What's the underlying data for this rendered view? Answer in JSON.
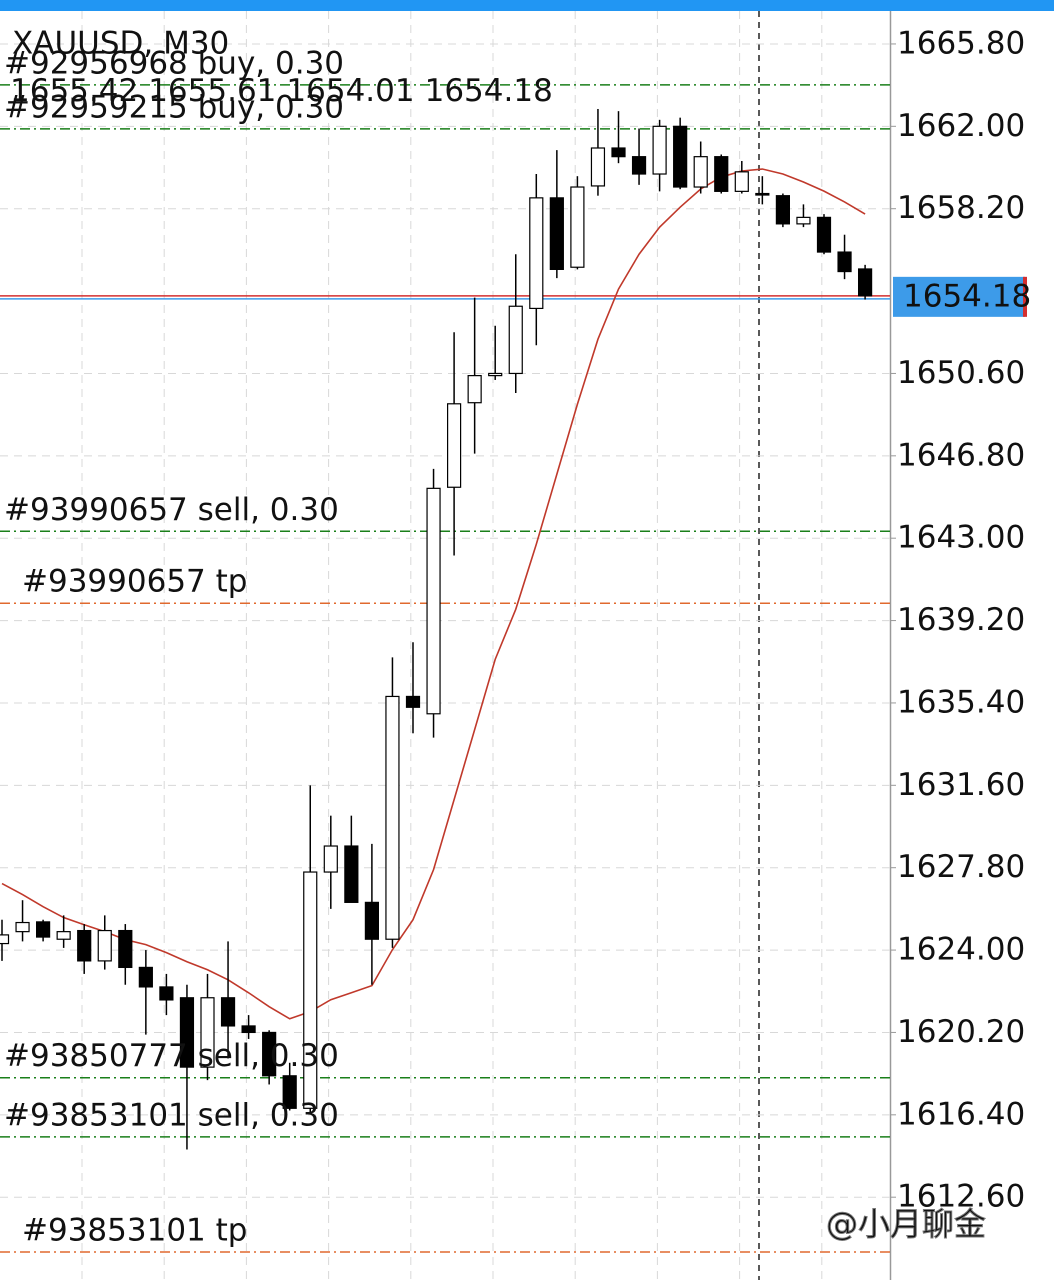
{
  "chart_data": {
    "type": "candlestick",
    "title": "XAUUSD, M30",
    "ylim": [
      1608.78,
      1667.32
    ],
    "yticks": [
      {
        "value": 1665.8,
        "label": "1665.80"
      },
      {
        "value": 1662,
        "label": "1662.00"
      },
      {
        "value": 1658.2,
        "label": "1658.20"
      },
      {
        "value": 1650.6,
        "label": "1650.60"
      },
      {
        "value": 1646.8,
        "label": "1646.80"
      },
      {
        "value": 1643,
        "label": "1643.00"
      },
      {
        "value": 1639.2,
        "label": "1639.20"
      },
      {
        "value": 1635.4,
        "label": "1635.40"
      },
      {
        "value": 1631.6,
        "label": "1631.60"
      },
      {
        "value": 1627.8,
        "label": "1627.80"
      },
      {
        "value": 1624,
        "label": "1624.00"
      },
      {
        "value": 1620.2,
        "label": "1620.20"
      },
      {
        "value": 1616.4,
        "label": "1616.40"
      },
      {
        "value": 1612.6,
        "label": "1612.60"
      }
    ],
    "grid": true,
    "up_color": "#ffffff",
    "down_color": "#000000",
    "series": {
      "open": [
        1624.3,
        1624.85,
        1625.3,
        1624.5,
        1624.9,
        1623.5,
        1624.9,
        1623.2,
        1622.3,
        1621.8,
        1618.6,
        1621.8,
        1620.5,
        1620.2,
        1618.2,
        1616.7,
        1627.6,
        1628.8,
        1626.2,
        1624.5,
        1635.7,
        1634.9,
        1645.35,
        1649.25,
        1650.5,
        1650.6,
        1653.6,
        1658.7,
        1655.5,
        1659.25,
        1661.0,
        1660.6,
        1659.8,
        1662.0,
        1659.2,
        1660.6,
        1659.0,
        1658.9,
        1658.8,
        1657.5,
        1657.8,
        1656.2,
        1655.42
      ],
      "high": [
        1625.4,
        1626.3,
        1625.4,
        1625.6,
        1625.2,
        1625.6,
        1625.2,
        1624.0,
        1622.9,
        1622.4,
        1622.9,
        1624.4,
        1621.0,
        1620.3,
        1618.8,
        1631.6,
        1630.2,
        1630.2,
        1628.9,
        1637.5,
        1638.2,
        1646.2,
        1652.5,
        1654.1,
        1652.8,
        1656.1,
        1659.8,
        1660.9,
        1659.7,
        1662.8,
        1662.7,
        1661.9,
        1662.3,
        1662.4,
        1661.3,
        1660.7,
        1660.4,
        1659.7,
        1658.9,
        1658.4,
        1657.95,
        1657.0,
        1655.61
      ],
      "low": [
        1623.5,
        1624.4,
        1624.4,
        1624.1,
        1622.9,
        1623.1,
        1622.4,
        1620.1,
        1621.0,
        1614.8,
        1618.0,
        1619.0,
        1619.9,
        1617.8,
        1616.6,
        1616.5,
        1625.9,
        1626.2,
        1622.4,
        1624.1,
        1634.0,
        1633.8,
        1642.2,
        1646.9,
        1650.3,
        1649.7,
        1651.9,
        1655.0,
        1655.4,
        1658.8,
        1660.3,
        1659.3,
        1659.0,
        1659.1,
        1658.9,
        1658.9,
        1658.9,
        1658.4,
        1657.35,
        1657.35,
        1656.1,
        1654.95,
        1654.01
      ],
      "close": [
        1624.7,
        1625.27,
        1624.6,
        1624.85,
        1623.5,
        1624.9,
        1623.2,
        1622.3,
        1621.7,
        1618.6,
        1621.8,
        1620.5,
        1620.2,
        1618.2,
        1616.7,
        1627.6,
        1628.8,
        1626.2,
        1624.5,
        1635.7,
        1635.2,
        1645.3,
        1649.2,
        1650.5,
        1650.6,
        1653.7,
        1658.7,
        1655.4,
        1659.2,
        1661.0,
        1660.6,
        1659.8,
        1662.0,
        1659.2,
        1660.6,
        1659.0,
        1659.9,
        1658.85,
        1657.5,
        1657.8,
        1656.2,
        1655.3,
        1654.18
      ]
    },
    "moving_average": {
      "color": "#c0392b",
      "values": [
        1627.07,
        1626.56,
        1626.0,
        1625.5,
        1625.17,
        1624.85,
        1624.48,
        1624.25,
        1623.88,
        1623.46,
        1623.09,
        1622.63,
        1622.03,
        1621.39,
        1620.83,
        1621.16,
        1621.71,
        1622.03,
        1622.36,
        1624.02,
        1625.4,
        1627.71,
        1630.94,
        1634.17,
        1637.41,
        1639.72,
        1642.72,
        1645.95,
        1649.18,
        1652.18,
        1654.49,
        1656.1,
        1657.35,
        1658.27,
        1659.11,
        1659.66,
        1659.94,
        1660.03,
        1659.8,
        1659.43,
        1659.01,
        1658.51,
        1657.95
      ]
    },
    "orders": [
      {
        "label": "#92956968 buy, 0.30",
        "price": 1663.91,
        "color": "#1a7f1a"
      },
      {
        "label": "#92959215 buy, 0.30",
        "price": 1661.88,
        "color": "#1a7f1a"
      },
      {
        "label": "#93990657 sell, 0.30",
        "price": 1643.32,
        "color": "#1a7f1a"
      },
      {
        "label": "#93990657 tp",
        "price": 1640.0,
        "color": "#e0692e"
      },
      {
        "label": "#93850777 sell, 0.30",
        "price": 1618.11,
        "color": "#1a7f1a"
      },
      {
        "label": "#93853101 sell, 0.30",
        "price": 1615.38,
        "color": "#1a7f1a"
      },
      {
        "label": "#93853101 tp",
        "price": 1610.07,
        "color": "#e0692e"
      }
    ],
    "price_line_color": "#d32f2f",
    "price_box_color": "#3d9be9",
    "watermark": "@小月聊金"
  }
}
